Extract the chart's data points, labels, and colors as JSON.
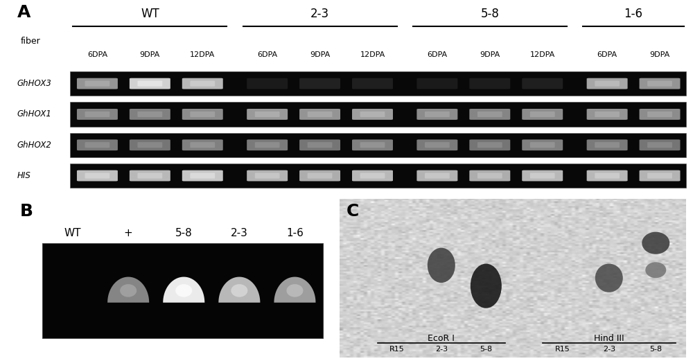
{
  "panel_A": {
    "label": "A",
    "groups": [
      "WT",
      "2-3",
      "5-8",
      "1-6"
    ],
    "group_lanes": [
      3,
      3,
      3,
      2
    ],
    "gene_labels": [
      "GhHOX3",
      "GhHOX1",
      "GhHOX2",
      "HIS"
    ],
    "band_brightness": {
      "GhHOX3": {
        "WT": [
          0.58,
          0.82,
          0.72
        ],
        "2-3": [
          0.1,
          0.13,
          0.12
        ],
        "5-8": [
          0.1,
          0.11,
          0.12
        ],
        "1-6": [
          0.65,
          0.58
        ]
      },
      "GhHOX1": {
        "WT": [
          0.52,
          0.5,
          0.55
        ],
        "2-3": [
          0.6,
          0.58,
          0.62
        ],
        "5-8": [
          0.55,
          0.52,
          0.55
        ],
        "1-6": [
          0.58,
          0.55
        ]
      },
      "GhHOX2": {
        "WT": [
          0.48,
          0.46,
          0.5
        ],
        "2-3": [
          0.48,
          0.46,
          0.5
        ],
        "5-8": [
          0.48,
          0.46,
          0.5
        ],
        "1-6": [
          0.48,
          0.46
        ]
      },
      "HIS": {
        "WT": [
          0.75,
          0.72,
          0.78
        ],
        "2-3": [
          0.7,
          0.68,
          0.72
        ],
        "5-8": [
          0.7,
          0.68,
          0.72
        ],
        "1-6": [
          0.72,
          0.7
        ]
      }
    }
  },
  "panel_B": {
    "label": "B",
    "lane_labels": [
      "WT",
      "+",
      "5-8",
      "2-3",
      "1-6"
    ],
    "has_band": [
      false,
      true,
      true,
      true,
      true
    ],
    "band_brightness": [
      0,
      0.52,
      0.92,
      0.72,
      0.62
    ]
  },
  "panel_C": {
    "label": "C",
    "ecorI_label": "EcoR I",
    "hindIII_label": "Hind III",
    "ecorI_lanes": [
      "R15",
      "2-3",
      "5-8"
    ],
    "hindIII_lanes": [
      "R15",
      "2-3",
      "5-8"
    ],
    "bg_color": "#d0c8bc"
  },
  "figure_bg": "#ffffff",
  "fig_width": 10.0,
  "fig_height": 5.21
}
